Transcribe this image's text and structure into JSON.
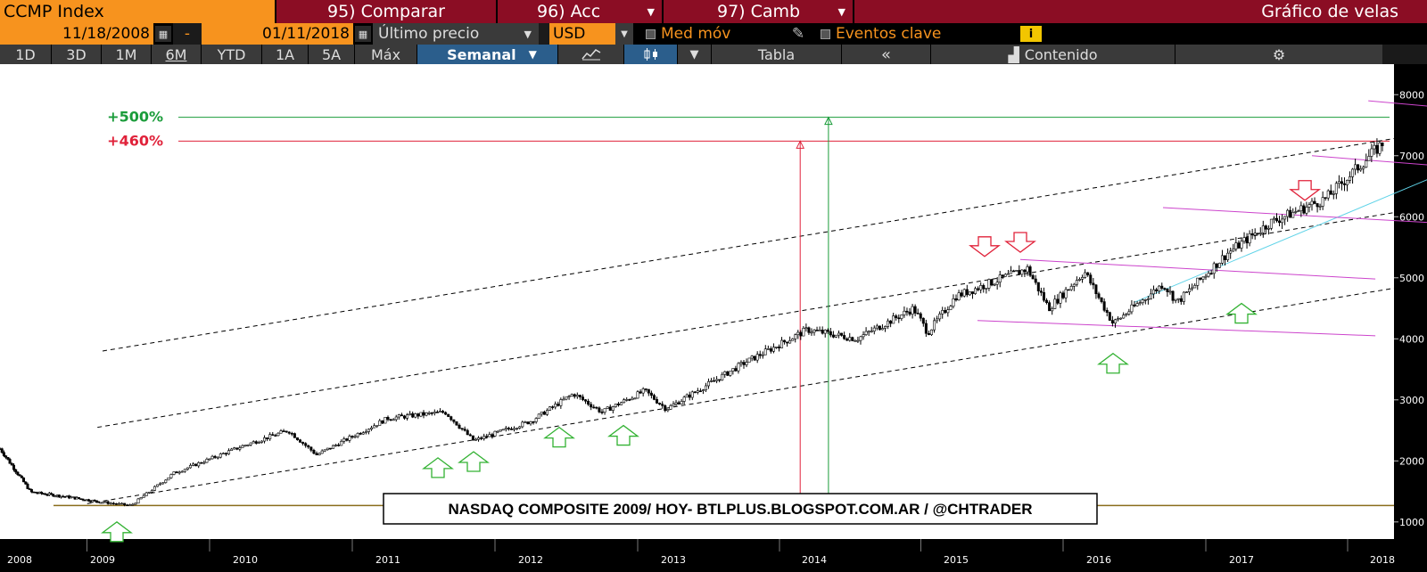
{
  "toolbar": {
    "ticker": "CCMP Index",
    "compare": "95) Comparar",
    "acc": "96) Acc",
    "camb": "97) Camb",
    "chart_type": "Gráfico de velas",
    "date_start": "11/18/2008",
    "date_sep": "-",
    "date_end": "01/11/2018",
    "price_field": "Último precio",
    "currency": "USD",
    "moving_avg": "Med móv",
    "key_events": "Eventos clave",
    "info": "i",
    "periods": [
      "1D",
      "3D",
      "1M",
      "6M",
      "YTD",
      "1A",
      "5A",
      "Máx"
    ],
    "frequency": "Semanal",
    "table": "Tabla",
    "content": "Contenido",
    "colors": {
      "orange": "#f7931e",
      "maroon": "#8b0d24",
      "active_blue": "#2b5e8c"
    }
  },
  "chart_data": {
    "type": "candlestick",
    "frequency": "weekly",
    "title": "NASDAQ COMPOSITE 2009/ HOY- BTLPLUS.BLOGSPOT.COM.AR / @CHTRADER",
    "x_ticks": [
      "2008",
      "2009",
      "2010",
      "2011",
      "2012",
      "2013",
      "2014",
      "2015",
      "2016",
      "2017",
      "2018"
    ],
    "y_ticks": [
      1000,
      2000,
      3000,
      4000,
      5000,
      6000,
      7000,
      8000
    ],
    "ylim": [
      720,
      8500
    ],
    "grid": false,
    "annotations": [
      {
        "label": "+500%",
        "value": 7630,
        "color": "#1a9c3a"
      },
      {
        "label": "+460%",
        "value": 7240,
        "color": "#e0223a"
      }
    ],
    "base_level": 1270,
    "price_points": [
      {
        "t": 2008.0,
        "v": 2200
      },
      {
        "t": 2008.3,
        "v": 1490
      },
      {
        "t": 2008.7,
        "v": 1400
      },
      {
        "t": 2009.2,
        "v": 1270
      },
      {
        "t": 2009.5,
        "v": 1800
      },
      {
        "t": 2010.0,
        "v": 2260
      },
      {
        "t": 2010.3,
        "v": 2500
      },
      {
        "t": 2010.5,
        "v": 2100
      },
      {
        "t": 2011.0,
        "v": 2700
      },
      {
        "t": 2011.4,
        "v": 2800
      },
      {
        "t": 2011.6,
        "v": 2330
      },
      {
        "t": 2012.0,
        "v": 2650
      },
      {
        "t": 2012.3,
        "v": 3100
      },
      {
        "t": 2012.5,
        "v": 2800
      },
      {
        "t": 2012.8,
        "v": 3150
      },
      {
        "t": 2012.95,
        "v": 2850
      },
      {
        "t": 2013.5,
        "v": 3600
      },
      {
        "t": 2013.95,
        "v": 4150
      },
      {
        "t": 2014.3,
        "v": 4000
      },
      {
        "t": 2014.7,
        "v": 4500
      },
      {
        "t": 2014.8,
        "v": 4100
      },
      {
        "t": 2015.0,
        "v": 4700
      },
      {
        "t": 2015.5,
        "v": 5150
      },
      {
        "t": 2015.65,
        "v": 4500
      },
      {
        "t": 2015.9,
        "v": 5100
      },
      {
        "t": 2016.1,
        "v": 4250
      },
      {
        "t": 2016.45,
        "v": 4900
      },
      {
        "t": 2016.55,
        "v": 4600
      },
      {
        "t": 2016.9,
        "v": 5400
      },
      {
        "t": 2017.2,
        "v": 5900
      },
      {
        "t": 2017.6,
        "v": 6300
      },
      {
        "t": 2018.0,
        "v": 7200
      }
    ],
    "support_arrows": [
      {
        "t": 2009.1,
        "v": 1000
      },
      {
        "t": 2011.35,
        "v": 2050
      },
      {
        "t": 2011.6,
        "v": 2150
      },
      {
        "t": 2012.2,
        "v": 2550
      },
      {
        "t": 2012.65,
        "v": 2580
      },
      {
        "t": 2016.1,
        "v": 3760
      },
      {
        "t": 2017.0,
        "v": 4580
      }
    ],
    "resistance_arrows": [
      {
        "t": 2015.2,
        "v": 5350
      },
      {
        "t": 2015.45,
        "v": 5420
      },
      {
        "t": 2017.45,
        "v": 6270
      }
    ],
    "channel_lines": [
      {
        "t1": 2009.0,
        "v1": 3800,
        "t2": 2019.3,
        "v2": 7750,
        "color": "#000",
        "dash": true
      },
      {
        "t1": 2008.95,
        "v1": 2550,
        "t2": 2019.3,
        "v2": 6540,
        "color": "#000",
        "dash": true
      },
      {
        "t1": 2008.85,
        "v1": 1300,
        "t2": 2019.2,
        "v2": 5260,
        "color": "#000",
        "dash": true
      },
      {
        "t1": 2016.25,
        "v1": 4600,
        "t2": 2018.95,
        "v2": 7230,
        "color": "#5fd3e8",
        "dash": false
      },
      {
        "t1": 2015.15,
        "v1": 4300,
        "t2": 2017.95,
        "v2": 4050,
        "color": "#cc44cc",
        "dash": false
      },
      {
        "t1": 2015.45,
        "v1": 5300,
        "t2": 2017.95,
        "v2": 4980,
        "color": "#cc44cc",
        "dash": false
      },
      {
        "t1": 2016.45,
        "v1": 6150,
        "t2": 2018.6,
        "v2": 5870,
        "color": "#cc44cc",
        "dash": false
      },
      {
        "t1": 2017.5,
        "v1": 7000,
        "t2": 2018.85,
        "v2": 6750,
        "color": "#cc44cc",
        "dash": false
      },
      {
        "t1": 2017.9,
        "v1": 7900,
        "t2": 2019.35,
        "v2": 7600,
        "color": "#cc44cc",
        "dash": false
      }
    ],
    "vertical_markers": [
      {
        "t": 2013.9,
        "v_top": 7240,
        "color": "#e0223a"
      },
      {
        "t": 2014.1,
        "v_top": 7630,
        "color": "#1a9c3a"
      }
    ]
  }
}
